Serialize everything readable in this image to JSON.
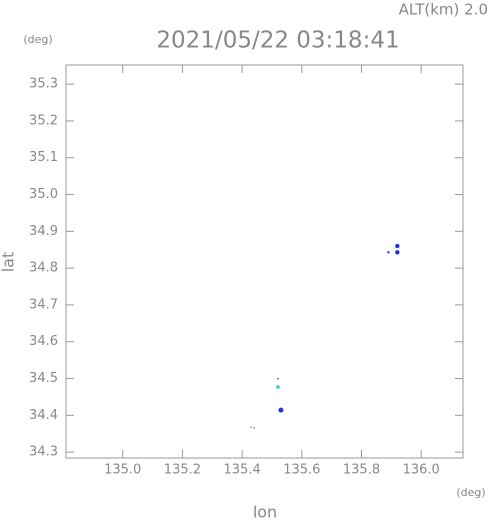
{
  "chart_data": {
    "type": "scatter",
    "title": "2021/05/22 03:18:41",
    "subtitle": "ALT(km) 2.0",
    "y_unit": "(deg)",
    "x_unit": "(deg)",
    "xlabel": "lon",
    "ylabel": "lat",
    "x": [
      135.89,
      135.92,
      135.92,
      135.52,
      135.52,
      135.53,
      135.43,
      135.44
    ],
    "values": [
      34.843,
      34.86,
      34.843,
      34.477,
      34.5,
      34.414,
      34.368,
      34.366
    ],
    "colors": [
      "#2233dd",
      "#2233dd",
      "#2233dd",
      "#33cccc",
      "#333333",
      "#2233dd",
      "#aaaaaa",
      "#555555"
    ],
    "sizes": [
      1.2,
      2.2,
      2.2,
      1.8,
      0.8,
      2.5,
      1,
      0.7
    ],
    "xlim": [
      134.81,
      136.14
    ],
    "ylim": [
      34.284,
      35.352
    ],
    "xticks": [
      {
        "value": 135.0,
        "label": "135.0"
      },
      135.2,
      135.4,
      135.6,
      135.8,
      {
        "value": 136.0,
        "label": "136.0"
      }
    ],
    "yticks": [
      35.3,
      35.2,
      35.1,
      {
        "value": 35.0,
        "label": "35.0"
      },
      34.9,
      34.8,
      34.7,
      34.6,
      34.5,
      34.4,
      34.3
    ]
  }
}
